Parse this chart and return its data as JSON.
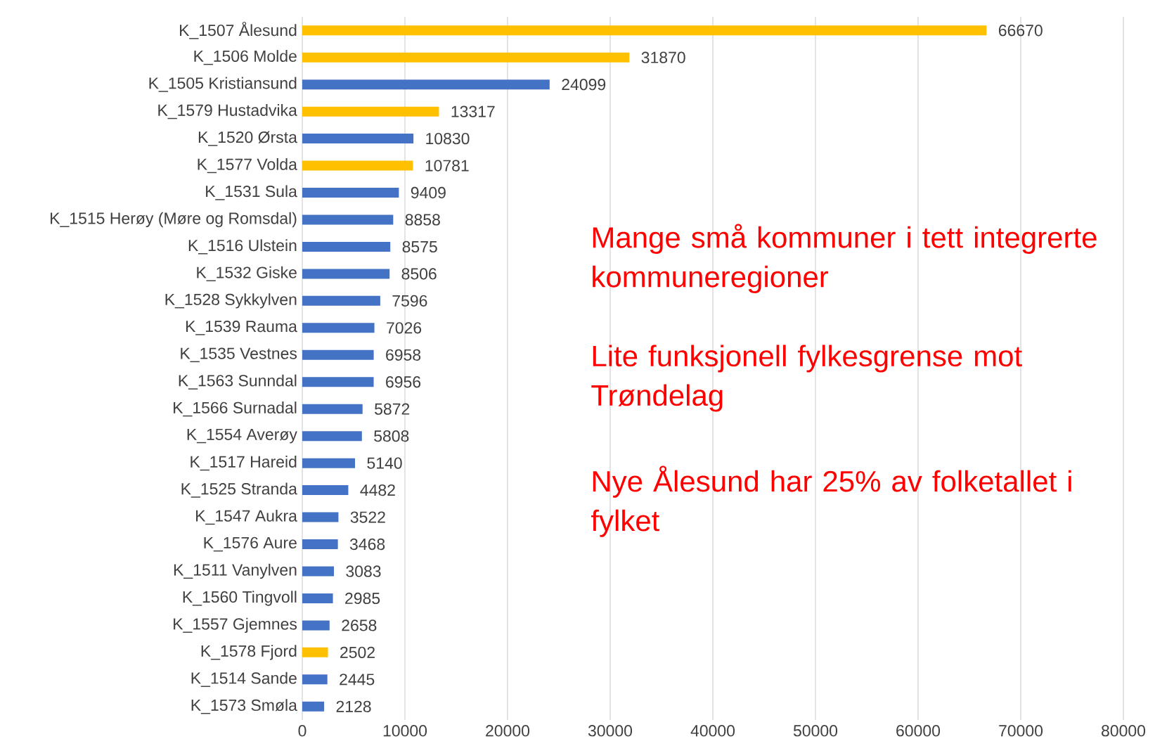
{
  "chart_data": {
    "type": "bar",
    "orientation": "horizontal",
    "categories": [
      "K_1507 Ålesund",
      "K_1506 Molde",
      "K_1505 Kristiansund",
      "K_1579 Hustadvika",
      "K_1520 Ørsta",
      "K_1577 Volda",
      "K_1531 Sula",
      "K_1515 Herøy (Møre og Romsdal)",
      "K_1516 Ulstein",
      "K_1532 Giske",
      "K_1528 Sykkylven",
      "K_1539 Rauma",
      "K_1535 Vestnes",
      "K_1563 Sunndal",
      "K_1566 Surnadal",
      "K_1554 Averøy",
      "K_1517 Hareid",
      "K_1525 Stranda",
      "K_1547 Aukra",
      "K_1576 Aure",
      "K_1511 Vanylven",
      "K_1560 Tingvoll",
      "K_1557 Gjemnes",
      "K_1578 Fjord",
      "K_1514 Sande",
      "K_1573 Smøla"
    ],
    "values": [
      66670,
      31870,
      24099,
      13317,
      10830,
      10781,
      9409,
      8858,
      8575,
      8506,
      7596,
      7026,
      6958,
      6956,
      5872,
      5808,
      5140,
      4482,
      3522,
      3468,
      3083,
      2985,
      2658,
      2502,
      2445,
      2128
    ],
    "colors": [
      "#ffc000",
      "#ffc000",
      "#4472c4",
      "#ffc000",
      "#4472c4",
      "#ffc000",
      "#4472c4",
      "#4472c4",
      "#4472c4",
      "#4472c4",
      "#4472c4",
      "#4472c4",
      "#4472c4",
      "#4472c4",
      "#4472c4",
      "#4472c4",
      "#4472c4",
      "#4472c4",
      "#4472c4",
      "#4472c4",
      "#4472c4",
      "#4472c4",
      "#4472c4",
      "#ffc000",
      "#4472c4",
      "#4472c4"
    ],
    "data_labels": true,
    "xlim": [
      0,
      80000
    ],
    "xticks": [
      0,
      10000,
      20000,
      30000,
      40000,
      50000,
      60000,
      70000,
      80000
    ],
    "grid": "x",
    "annotations": [
      "Mange små kommuner i tett integrerte kommuneregioner",
      "Lite funksjonell fylkesgrense mot Trøndelag",
      "Nye Ålesund har 25% av folketallet i fylket"
    ]
  }
}
